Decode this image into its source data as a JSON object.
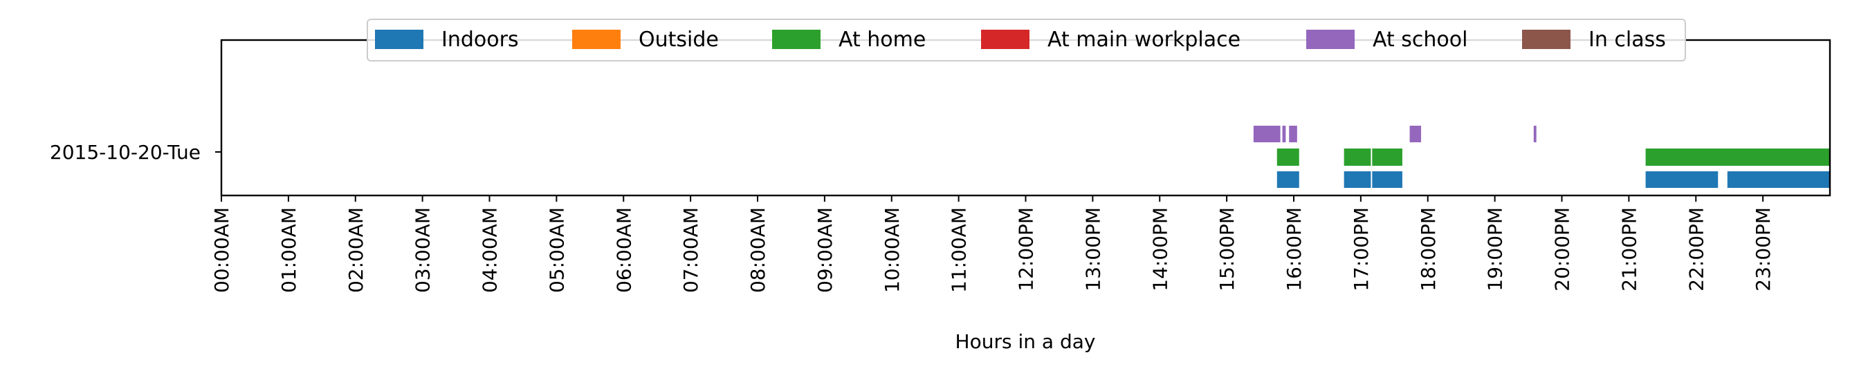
{
  "chart_data": {
    "type": "timeline",
    "title": "",
    "xlabel": "Hours in a day",
    "ylabel": "",
    "xlim_hours": [
      0,
      24
    ],
    "grid": false,
    "legend_placement": "top-center",
    "row_label": "2015-10-20-Tue",
    "x_ticks": [
      "00:00AM",
      "01:00AM",
      "02:00AM",
      "03:00AM",
      "04:00AM",
      "05:00AM",
      "06:00AM",
      "07:00AM",
      "08:00AM",
      "09:00AM",
      "10:00AM",
      "11:00AM",
      "12:00PM",
      "13:00PM",
      "14:00PM",
      "15:00PM",
      "16:00PM",
      "17:00PM",
      "18:00PM",
      "19:00PM",
      "20:00PM",
      "21:00PM",
      "22:00PM",
      "23:00PM"
    ],
    "series": [
      {
        "name": "Indoors",
        "color": "#1f77b4",
        "intervals": [
          [
            15.75,
            16.08
          ],
          [
            16.75,
            17.15
          ],
          [
            17.17,
            17.62
          ],
          [
            21.25,
            22.33
          ],
          [
            22.47,
            24.0
          ]
        ]
      },
      {
        "name": "Outside",
        "color": "#ff7f0e",
        "intervals": []
      },
      {
        "name": "At home",
        "color": "#2ca02c",
        "intervals": [
          [
            15.75,
            16.08
          ],
          [
            16.75,
            17.15
          ],
          [
            17.17,
            17.62
          ],
          [
            21.25,
            24.0
          ]
        ]
      },
      {
        "name": "At main workplace",
        "color": "#d62728",
        "intervals": []
      },
      {
        "name": "At school",
        "color": "#9467bd",
        "intervals": [
          [
            15.4,
            15.8
          ],
          [
            15.83,
            15.88
          ],
          [
            15.93,
            16.05
          ],
          [
            17.73,
            17.9
          ],
          [
            19.58,
            19.62
          ]
        ]
      },
      {
        "name": "In class",
        "color": "#8c564b",
        "intervals": []
      }
    ]
  }
}
